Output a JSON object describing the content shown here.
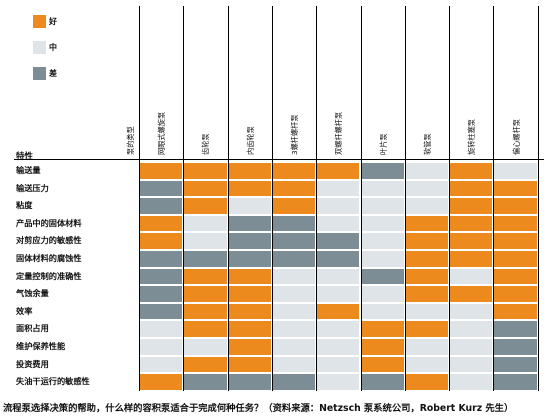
{
  "colors": {
    "good": "#ec8a1e",
    "medium": "#dfe4e8",
    "poor": "#7c8d96"
  },
  "legend": [
    {
      "key": "good",
      "label": "好",
      "icon": "orange-square"
    },
    {
      "key": "medium",
      "label": "中",
      "icon": "light-gray-square"
    },
    {
      "key": "poor",
      "label": "差",
      "icon": "dark-gray-square"
    }
  ],
  "table": {
    "row_header": "特性",
    "pump_type_header": "泵的类型",
    "columns": [
      "网眼式螺旋泵",
      "齿轮泵",
      "内齿轮泵",
      "3螺杆螺杆泵",
      "双螺杆螺杆泵",
      "叶片泵",
      "软管泵",
      "旋转柱塞泵",
      "偏心螺杆泵"
    ],
    "rows": [
      {
        "label": "输送量",
        "ratings": [
          "good",
          "good",
          "good",
          "good",
          "good",
          "poor",
          "medium",
          "good",
          "medium"
        ]
      },
      {
        "label": "输送压力",
        "ratings": [
          "poor",
          "good",
          "good",
          "good",
          "medium",
          "medium",
          "medium",
          "good",
          "good"
        ]
      },
      {
        "label": "粘度",
        "ratings": [
          "poor",
          "good",
          "medium",
          "good",
          "medium",
          "medium",
          "medium",
          "good",
          "good"
        ]
      },
      {
        "label": "产品中的固体材料",
        "ratings": [
          "good",
          "medium",
          "poor",
          "poor",
          "medium",
          "medium",
          "good",
          "good",
          "good"
        ]
      },
      {
        "label": "对剪应力的敏感性",
        "ratings": [
          "good",
          "medium",
          "poor",
          "poor",
          "poor",
          "medium",
          "good",
          "good",
          "good"
        ]
      },
      {
        "label": "固体材料的腐蚀性",
        "ratings": [
          "poor",
          "poor",
          "poor",
          "poor",
          "poor",
          "medium",
          "good",
          "good",
          "good"
        ]
      },
      {
        "label": "定量控制的准确性",
        "ratings": [
          "poor",
          "good",
          "good",
          "medium",
          "medium",
          "poor",
          "good",
          "medium",
          "good"
        ]
      },
      {
        "label": "气蚀余量",
        "ratings": [
          "poor",
          "good",
          "good",
          "medium",
          "medium",
          "medium",
          "good",
          "good",
          "good"
        ]
      },
      {
        "label": "效率",
        "ratings": [
          "poor",
          "good",
          "good",
          "medium",
          "good",
          "medium",
          "medium",
          "medium",
          "good"
        ]
      },
      {
        "label": "面积占用",
        "ratings": [
          "medium",
          "good",
          "good",
          "medium",
          "medium",
          "good",
          "good",
          "medium",
          "poor"
        ]
      },
      {
        "label": "维护保养性能",
        "ratings": [
          "medium",
          "medium",
          "good",
          "medium",
          "medium",
          "good",
          "medium",
          "medium",
          "poor"
        ]
      },
      {
        "label": "投资费用",
        "ratings": [
          "medium",
          "good",
          "good",
          "medium",
          "medium",
          "good",
          "medium",
          "medium",
          "poor"
        ]
      },
      {
        "label": "失油干运行的敏感性",
        "ratings": [
          "good",
          "poor",
          "poor",
          "poor",
          "medium",
          "poor",
          "good",
          "medium",
          "poor"
        ]
      }
    ]
  },
  "caption": "流程泵选择决策的帮助，什么样的容积泵适合于完成何种任务？（资料来源：Netzsch 泵系统公司，Robert Kurz 先生）"
}
